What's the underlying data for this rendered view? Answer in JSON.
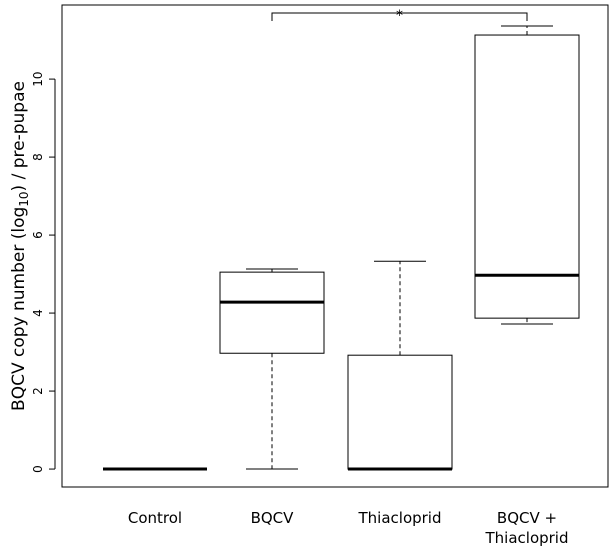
{
  "chart_data": {
    "type": "box",
    "ylabel": {
      "before": "BQCV copy number (log",
      "sub": "10",
      "after": ") / pre-pupae"
    },
    "categories": [
      "Control",
      "BQCV",
      "Thiacloprid",
      "BQCV + Thiacloprid"
    ],
    "boxes": [
      {
        "min": 0,
        "q1": 0,
        "median": 0,
        "q3": 0,
        "max": 0
      },
      {
        "min": 0,
        "q1": 2.97,
        "median": 4.28,
        "q3": 5.05,
        "max": 5.13
      },
      {
        "min": 0,
        "q1": 0,
        "median": 0,
        "q3": 2.92,
        "max": 5.33
      },
      {
        "min": 3.72,
        "q1": 3.87,
        "median": 4.97,
        "q3": 11.13,
        "max": 11.36
      }
    ],
    "ylim": [
      -0.46,
      11.9
    ],
    "yticks": [
      0,
      2,
      4,
      6,
      8,
      10
    ],
    "significance": {
      "from": 1,
      "to": 3,
      "label": "*"
    }
  }
}
